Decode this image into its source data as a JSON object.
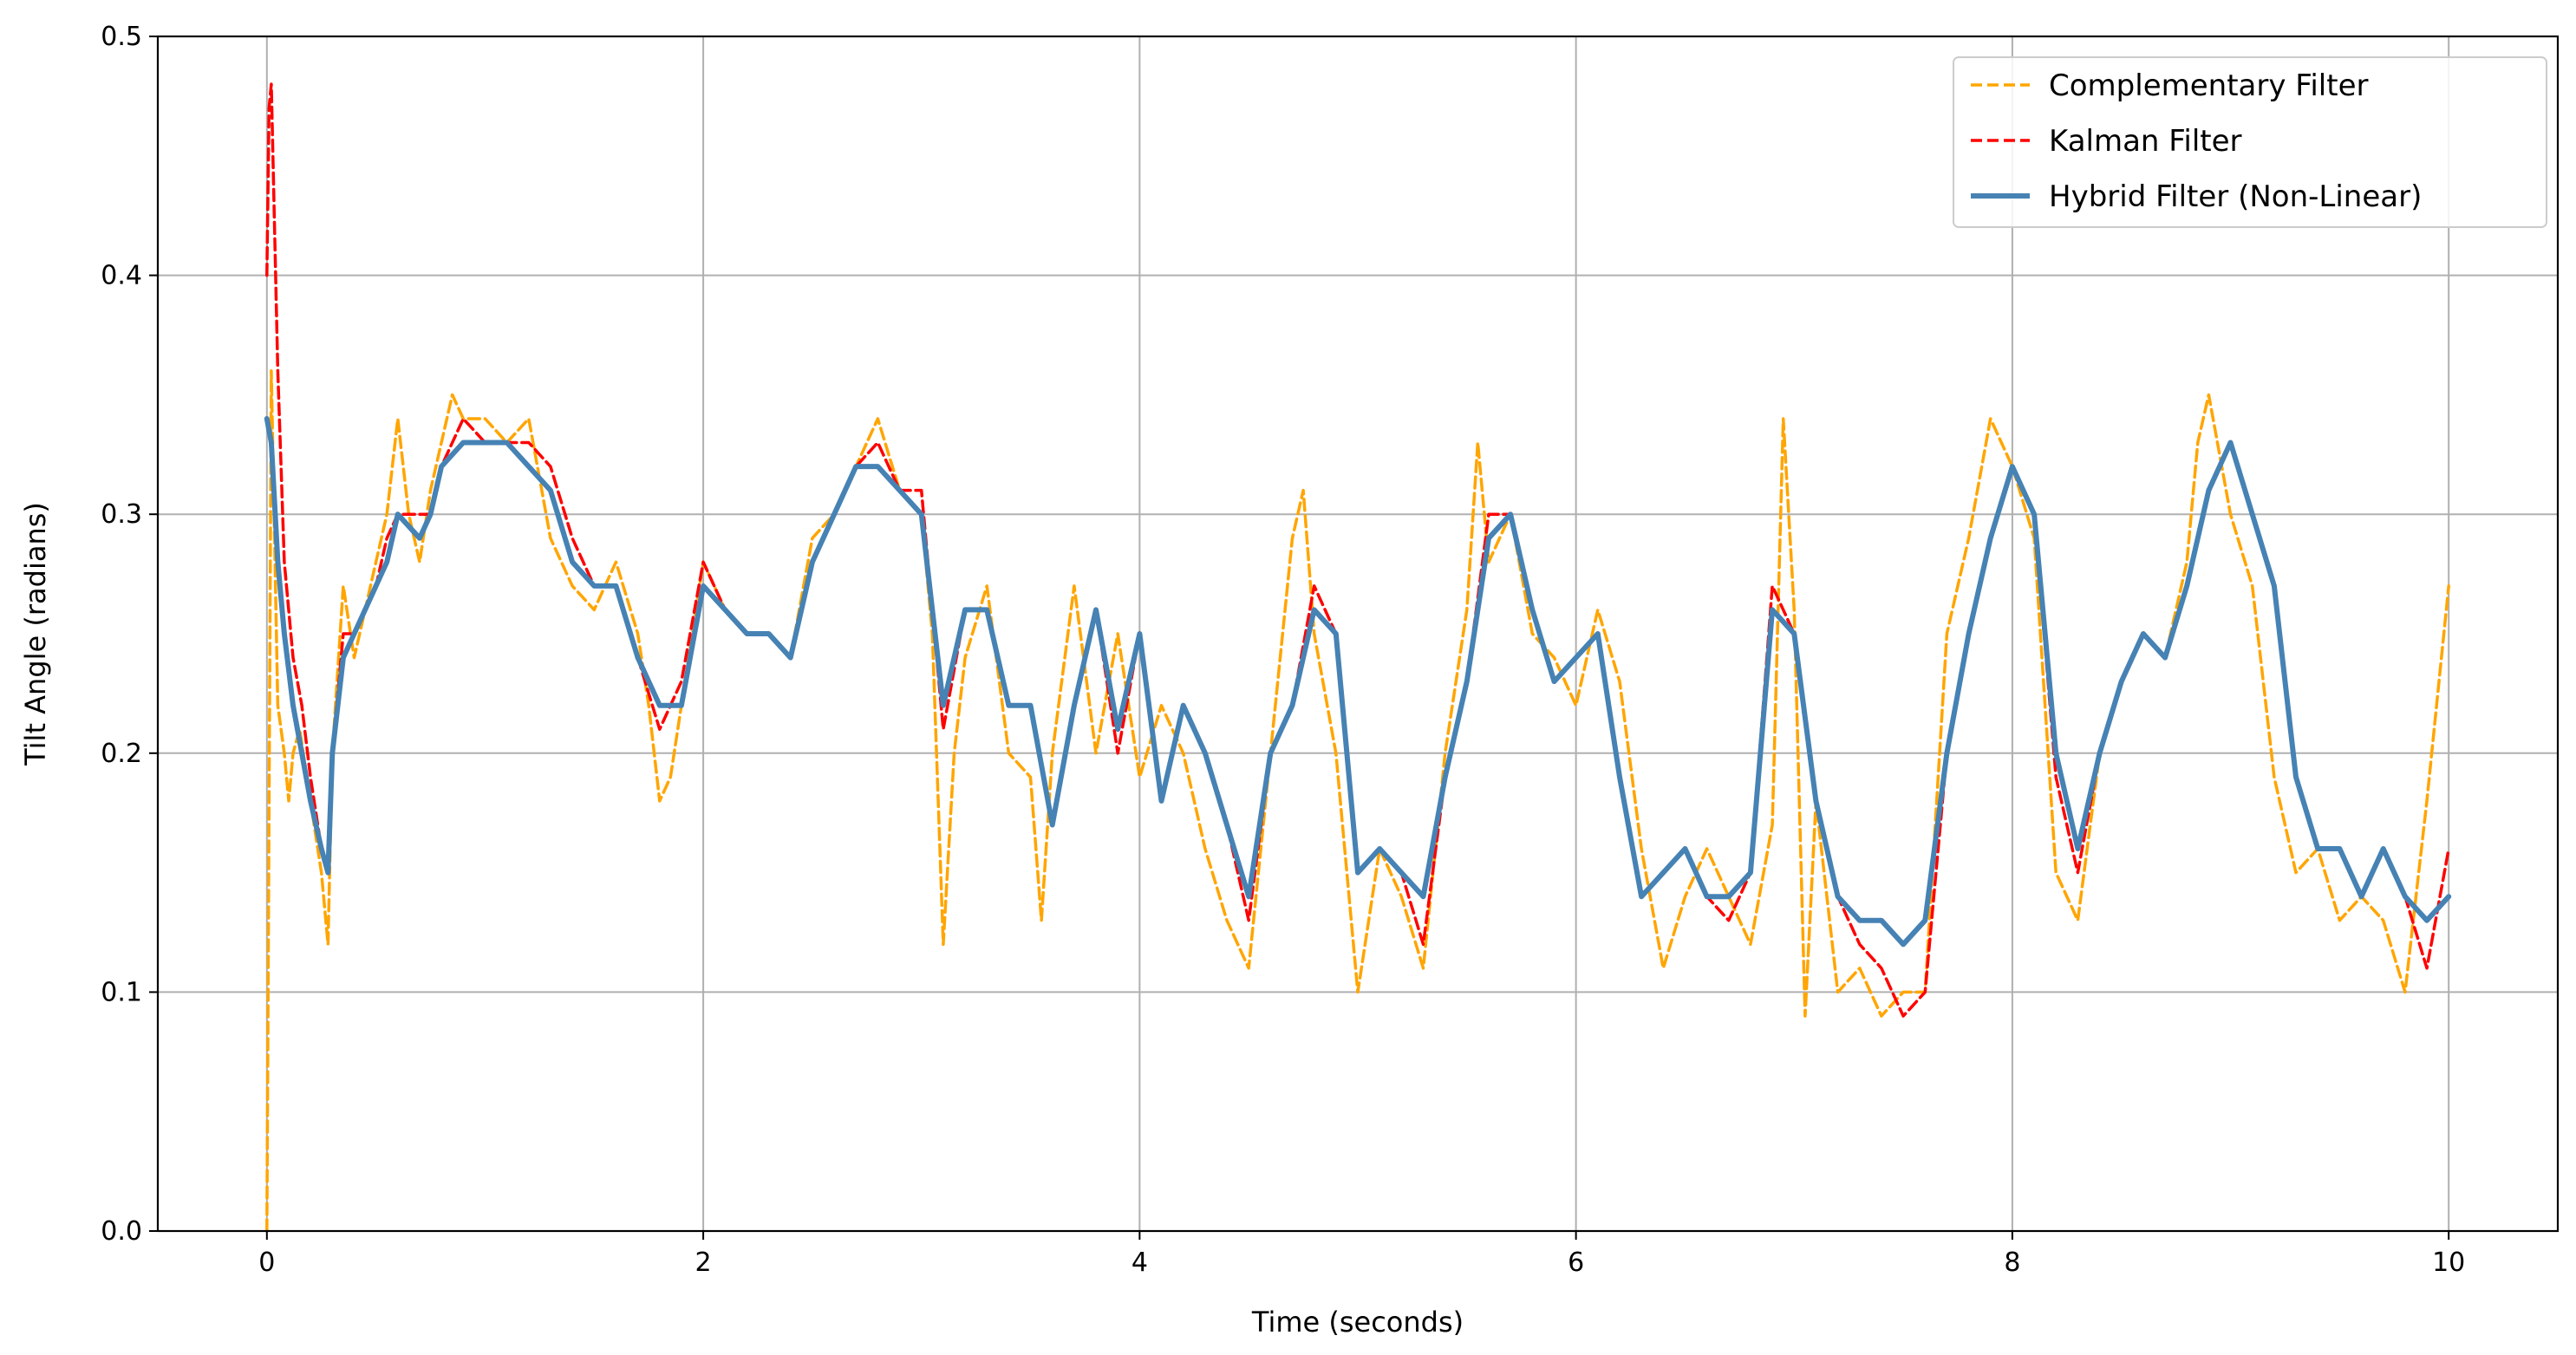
{
  "chart_data": {
    "type": "line",
    "title": "",
    "xlabel": "Time (seconds)",
    "ylabel": "Tilt Angle (radians)",
    "xlim": [
      -0.5,
      10.5
    ],
    "ylim": [
      0.0,
      0.5
    ],
    "xticks": [
      0,
      2,
      4,
      6,
      8,
      10
    ],
    "xtick_labels": [
      "0",
      "2",
      "4",
      "6",
      "8",
      "10"
    ],
    "yticks": [
      0.0,
      0.1,
      0.2,
      0.3,
      0.4,
      0.5
    ],
    "ytick_labels": [
      "0.0",
      "0.1",
      "0.2",
      "0.3",
      "0.4",
      "0.5"
    ],
    "grid": true,
    "legend_position": "top-right",
    "series": [
      {
        "name": "Complementary Filter",
        "color": "#ffa500",
        "style": "dashed",
        "x": [
          0.0,
          0.02,
          0.05,
          0.08,
          0.1,
          0.12,
          0.15,
          0.2,
          0.25,
          0.28,
          0.3,
          0.35,
          0.4,
          0.45,
          0.5,
          0.55,
          0.6,
          0.65,
          0.7,
          0.75,
          0.8,
          0.85,
          0.9,
          1.0,
          1.1,
          1.2,
          1.3,
          1.4,
          1.5,
          1.6,
          1.7,
          1.75,
          1.8,
          1.85,
          1.9,
          2.0,
          2.1,
          2.2,
          2.3,
          2.4,
          2.5,
          2.6,
          2.7,
          2.8,
          2.9,
          3.0,
          3.05,
          3.1,
          3.15,
          3.2,
          3.3,
          3.4,
          3.5,
          3.55,
          3.6,
          3.7,
          3.8,
          3.9,
          4.0,
          4.1,
          4.2,
          4.3,
          4.4,
          4.5,
          4.6,
          4.7,
          4.75,
          4.8,
          4.9,
          5.0,
          5.1,
          5.2,
          5.3,
          5.4,
          5.5,
          5.55,
          5.6,
          5.7,
          5.8,
          5.9,
          6.0,
          6.1,
          6.2,
          6.3,
          6.4,
          6.5,
          6.6,
          6.7,
          6.8,
          6.9,
          6.95,
          7.0,
          7.05,
          7.1,
          7.2,
          7.3,
          7.4,
          7.5,
          7.6,
          7.7,
          7.8,
          7.9,
          8.0,
          8.1,
          8.2,
          8.3,
          8.4,
          8.5,
          8.6,
          8.7,
          8.8,
          8.85,
          8.9,
          9.0,
          9.1,
          9.2,
          9.3,
          9.4,
          9.5,
          9.6,
          9.7,
          9.8,
          9.9,
          10.0
        ],
        "y": [
          0.0,
          0.36,
          0.22,
          0.2,
          0.18,
          0.2,
          0.21,
          0.18,
          0.15,
          0.12,
          0.2,
          0.27,
          0.24,
          0.26,
          0.28,
          0.3,
          0.34,
          0.3,
          0.28,
          0.31,
          0.33,
          0.35,
          0.34,
          0.34,
          0.33,
          0.34,
          0.29,
          0.27,
          0.26,
          0.28,
          0.25,
          0.22,
          0.18,
          0.19,
          0.22,
          0.28,
          0.26,
          0.25,
          0.25,
          0.24,
          0.29,
          0.3,
          0.32,
          0.34,
          0.31,
          0.3,
          0.25,
          0.12,
          0.2,
          0.24,
          0.27,
          0.2,
          0.19,
          0.13,
          0.2,
          0.27,
          0.2,
          0.25,
          0.19,
          0.22,
          0.2,
          0.16,
          0.13,
          0.11,
          0.2,
          0.29,
          0.31,
          0.25,
          0.2,
          0.1,
          0.16,
          0.14,
          0.11,
          0.2,
          0.26,
          0.33,
          0.28,
          0.3,
          0.25,
          0.24,
          0.22,
          0.26,
          0.23,
          0.16,
          0.11,
          0.14,
          0.16,
          0.14,
          0.12,
          0.17,
          0.34,
          0.26,
          0.09,
          0.18,
          0.1,
          0.11,
          0.09,
          0.1,
          0.1,
          0.25,
          0.29,
          0.34,
          0.32,
          0.29,
          0.15,
          0.13,
          0.2,
          0.23,
          0.25,
          0.24,
          0.28,
          0.33,
          0.35,
          0.3,
          0.27,
          0.19,
          0.15,
          0.16,
          0.13,
          0.14,
          0.13,
          0.1,
          0.18,
          0.27
        ]
      },
      {
        "name": "Kalman Filter",
        "color": "#ff0000",
        "style": "dashed",
        "x": [
          0.0,
          0.01,
          0.02,
          0.03,
          0.05,
          0.08,
          0.12,
          0.16,
          0.2,
          0.25,
          0.28,
          0.3,
          0.35,
          0.4,
          0.5,
          0.55,
          0.6,
          0.7,
          0.75,
          0.8,
          0.9,
          1.0,
          1.1,
          1.2,
          1.3,
          1.4,
          1.5,
          1.6,
          1.7,
          1.8,
          1.9,
          2.0,
          2.1,
          2.2,
          2.3,
          2.4,
          2.5,
          2.6,
          2.7,
          2.8,
          2.9,
          3.0,
          3.1,
          3.2,
          3.3,
          3.4,
          3.5,
          3.6,
          3.7,
          3.8,
          3.9,
          4.0,
          4.1,
          4.2,
          4.3,
          4.4,
          4.5,
          4.6,
          4.7,
          4.8,
          4.9,
          5.0,
          5.1,
          5.2,
          5.3,
          5.4,
          5.5,
          5.6,
          5.7,
          5.8,
          5.9,
          6.0,
          6.1,
          6.2,
          6.3,
          6.4,
          6.5,
          6.6,
          6.7,
          6.8,
          6.9,
          7.0,
          7.1,
          7.2,
          7.3,
          7.4,
          7.5,
          7.6,
          7.7,
          7.8,
          7.9,
          8.0,
          8.1,
          8.2,
          8.3,
          8.4,
          8.5,
          8.6,
          8.7,
          8.8,
          8.9,
          9.0,
          9.1,
          9.2,
          9.3,
          9.4,
          9.5,
          9.6,
          9.7,
          9.8,
          9.9,
          10.0
        ],
        "y": [
          0.4,
          0.47,
          0.48,
          0.44,
          0.36,
          0.28,
          0.24,
          0.22,
          0.19,
          0.16,
          0.15,
          0.2,
          0.25,
          0.25,
          0.27,
          0.29,
          0.3,
          0.3,
          0.3,
          0.32,
          0.34,
          0.33,
          0.33,
          0.33,
          0.32,
          0.29,
          0.27,
          0.27,
          0.24,
          0.21,
          0.23,
          0.28,
          0.26,
          0.25,
          0.25,
          0.24,
          0.28,
          0.3,
          0.32,
          0.33,
          0.31,
          0.31,
          0.21,
          0.26,
          0.26,
          0.22,
          0.22,
          0.17,
          0.22,
          0.26,
          0.2,
          0.25,
          0.18,
          0.22,
          0.2,
          0.17,
          0.13,
          0.2,
          0.22,
          0.27,
          0.25,
          0.15,
          0.16,
          0.15,
          0.12,
          0.19,
          0.23,
          0.3,
          0.3,
          0.26,
          0.23,
          0.24,
          0.25,
          0.19,
          0.14,
          0.15,
          0.16,
          0.14,
          0.13,
          0.15,
          0.27,
          0.25,
          0.18,
          0.14,
          0.12,
          0.11,
          0.09,
          0.1,
          0.2,
          0.25,
          0.29,
          0.32,
          0.3,
          0.19,
          0.15,
          0.2,
          0.23,
          0.25,
          0.24,
          0.27,
          0.31,
          0.33,
          0.3,
          0.27,
          0.19,
          0.16,
          0.16,
          0.14,
          0.16,
          0.14,
          0.11,
          0.16
        ]
      },
      {
        "name": "Hybrid Filter (Non-Linear)",
        "color": "#4682b4",
        "style": "solid",
        "x": [
          0.0,
          0.02,
          0.05,
          0.08,
          0.12,
          0.16,
          0.2,
          0.25,
          0.28,
          0.3,
          0.35,
          0.4,
          0.5,
          0.55,
          0.6,
          0.7,
          0.75,
          0.8,
          0.9,
          1.0,
          1.1,
          1.2,
          1.3,
          1.4,
          1.5,
          1.6,
          1.7,
          1.8,
          1.9,
          2.0,
          2.1,
          2.2,
          2.3,
          2.4,
          2.5,
          2.6,
          2.7,
          2.8,
          2.9,
          3.0,
          3.1,
          3.2,
          3.3,
          3.4,
          3.5,
          3.6,
          3.7,
          3.8,
          3.9,
          4.0,
          4.1,
          4.2,
          4.3,
          4.4,
          4.5,
          4.6,
          4.7,
          4.8,
          4.9,
          5.0,
          5.1,
          5.2,
          5.3,
          5.4,
          5.5,
          5.6,
          5.7,
          5.8,
          5.9,
          6.0,
          6.1,
          6.2,
          6.3,
          6.4,
          6.5,
          6.6,
          6.7,
          6.8,
          6.9,
          7.0,
          7.1,
          7.2,
          7.3,
          7.4,
          7.5,
          7.6,
          7.7,
          7.8,
          7.9,
          8.0,
          8.1,
          8.2,
          8.3,
          8.4,
          8.5,
          8.6,
          8.7,
          8.8,
          8.9,
          9.0,
          9.1,
          9.2,
          9.3,
          9.4,
          9.5,
          9.6,
          9.7,
          9.8,
          9.9,
          10.0
        ],
        "y": [
          0.34,
          0.33,
          0.28,
          0.25,
          0.22,
          0.2,
          0.18,
          0.16,
          0.15,
          0.2,
          0.24,
          0.25,
          0.27,
          0.28,
          0.3,
          0.29,
          0.3,
          0.32,
          0.33,
          0.33,
          0.33,
          0.32,
          0.31,
          0.28,
          0.27,
          0.27,
          0.24,
          0.22,
          0.22,
          0.27,
          0.26,
          0.25,
          0.25,
          0.24,
          0.28,
          0.3,
          0.32,
          0.32,
          0.31,
          0.3,
          0.22,
          0.26,
          0.26,
          0.22,
          0.22,
          0.17,
          0.22,
          0.26,
          0.21,
          0.25,
          0.18,
          0.22,
          0.2,
          0.17,
          0.14,
          0.2,
          0.22,
          0.26,
          0.25,
          0.15,
          0.16,
          0.15,
          0.14,
          0.19,
          0.23,
          0.29,
          0.3,
          0.26,
          0.23,
          0.24,
          0.25,
          0.19,
          0.14,
          0.15,
          0.16,
          0.14,
          0.14,
          0.15,
          0.26,
          0.25,
          0.18,
          0.14,
          0.13,
          0.13,
          0.12,
          0.13,
          0.2,
          0.25,
          0.29,
          0.32,
          0.3,
          0.2,
          0.16,
          0.2,
          0.23,
          0.25,
          0.24,
          0.27,
          0.31,
          0.33,
          0.3,
          0.27,
          0.19,
          0.16,
          0.16,
          0.14,
          0.16,
          0.14,
          0.13,
          0.14
        ]
      }
    ]
  }
}
